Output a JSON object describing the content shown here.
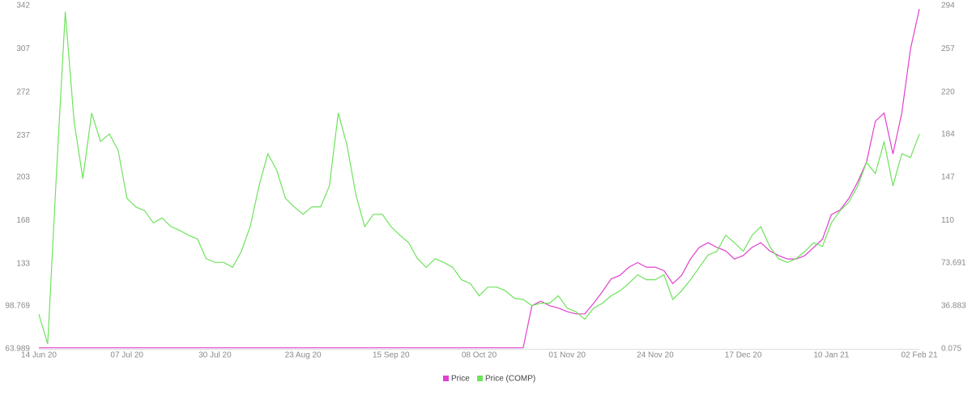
{
  "chart_data": {
    "type": "line",
    "categories": [
      "14 Jun 20",
      null,
      null,
      null,
      null,
      null,
      null,
      null,
      null,
      null,
      "07 Jul 20",
      null,
      null,
      null,
      null,
      null,
      null,
      null,
      null,
      null,
      "30 Jul 20",
      null,
      null,
      null,
      null,
      null,
      null,
      null,
      null,
      null,
      "23 Aug 20",
      null,
      null,
      null,
      null,
      null,
      null,
      null,
      null,
      null,
      "15 Sep 20",
      null,
      null,
      null,
      null,
      null,
      null,
      null,
      null,
      null,
      "08 Oct 20",
      null,
      null,
      null,
      null,
      null,
      null,
      null,
      null,
      null,
      "01 Nov 20",
      null,
      null,
      null,
      null,
      null,
      null,
      null,
      null,
      null,
      "24 Nov 20",
      null,
      null,
      null,
      null,
      null,
      null,
      null,
      null,
      null,
      "17 Dec 20",
      null,
      null,
      null,
      null,
      null,
      null,
      null,
      null,
      null,
      "10 Jan 21",
      null,
      null,
      null,
      null,
      null,
      null,
      null,
      null,
      null,
      "02 Feb 21"
    ],
    "series": [
      {
        "name": "Price",
        "color": "#e040cf",
        "axis": "y2",
        "values": [
          1,
          1,
          1,
          1,
          1,
          1,
          1,
          1,
          1,
          1,
          1,
          1,
          1,
          1,
          1,
          1,
          1,
          1,
          1,
          1,
          1,
          1,
          1,
          1,
          1,
          1,
          1,
          1,
          1,
          1,
          1,
          1,
          1,
          1,
          1,
          1,
          1,
          1,
          1,
          1,
          1,
          1,
          1,
          1,
          1,
          1,
          1,
          1,
          1,
          1,
          1,
          1,
          1,
          1,
          1,
          1,
          37,
          41,
          37,
          35,
          32,
          30,
          30,
          39,
          49,
          60,
          63,
          70,
          74,
          70,
          70,
          67,
          56,
          63,
          77,
          87,
          91,
          87,
          84,
          77,
          80,
          87,
          91,
          84,
          80,
          77,
          77,
          80,
          87,
          94,
          115,
          119,
          129,
          143,
          160,
          195,
          202,
          167,
          202,
          257,
          291
        ]
      },
      {
        "name": "Price (COMP)",
        "color": "#6ee35c",
        "values": [
          92,
          68,
          206,
          337,
          248,
          202,
          255,
          232,
          238,
          225,
          186,
          179,
          176,
          166,
          170,
          163,
          160,
          156,
          153,
          137,
          134,
          134,
          130,
          143,
          163,
          196,
          222,
          209,
          186,
          179,
          173,
          179,
          179,
          196,
          255,
          229,
          189,
          163,
          173,
          173,
          163,
          156,
          150,
          137,
          130,
          137,
          134,
          130,
          120,
          117,
          107,
          114,
          114,
          111,
          105,
          104,
          99,
          101,
          101,
          107,
          97,
          94,
          88,
          97,
          101,
          107,
          111,
          117,
          124,
          120,
          120,
          124,
          104,
          111,
          120,
          130,
          140,
          143,
          156,
          150,
          143,
          156,
          163,
          147,
          137,
          134,
          137,
          143,
          150,
          147,
          166,
          176,
          183,
          196,
          215,
          206,
          232,
          196,
          222,
          219,
          238
        ]
      }
    ],
    "ylim": [
      63.989,
      342
    ],
    "yticks": [
      63.989,
      98.769,
      133,
      168,
      203,
      237,
      272,
      307,
      342
    ],
    "y2lim": [
      0.075,
      294
    ],
    "y2ticks": [
      0.075,
      36.883,
      73.691,
      110,
      147,
      184,
      220,
      257,
      294
    ],
    "grid": false
  }
}
